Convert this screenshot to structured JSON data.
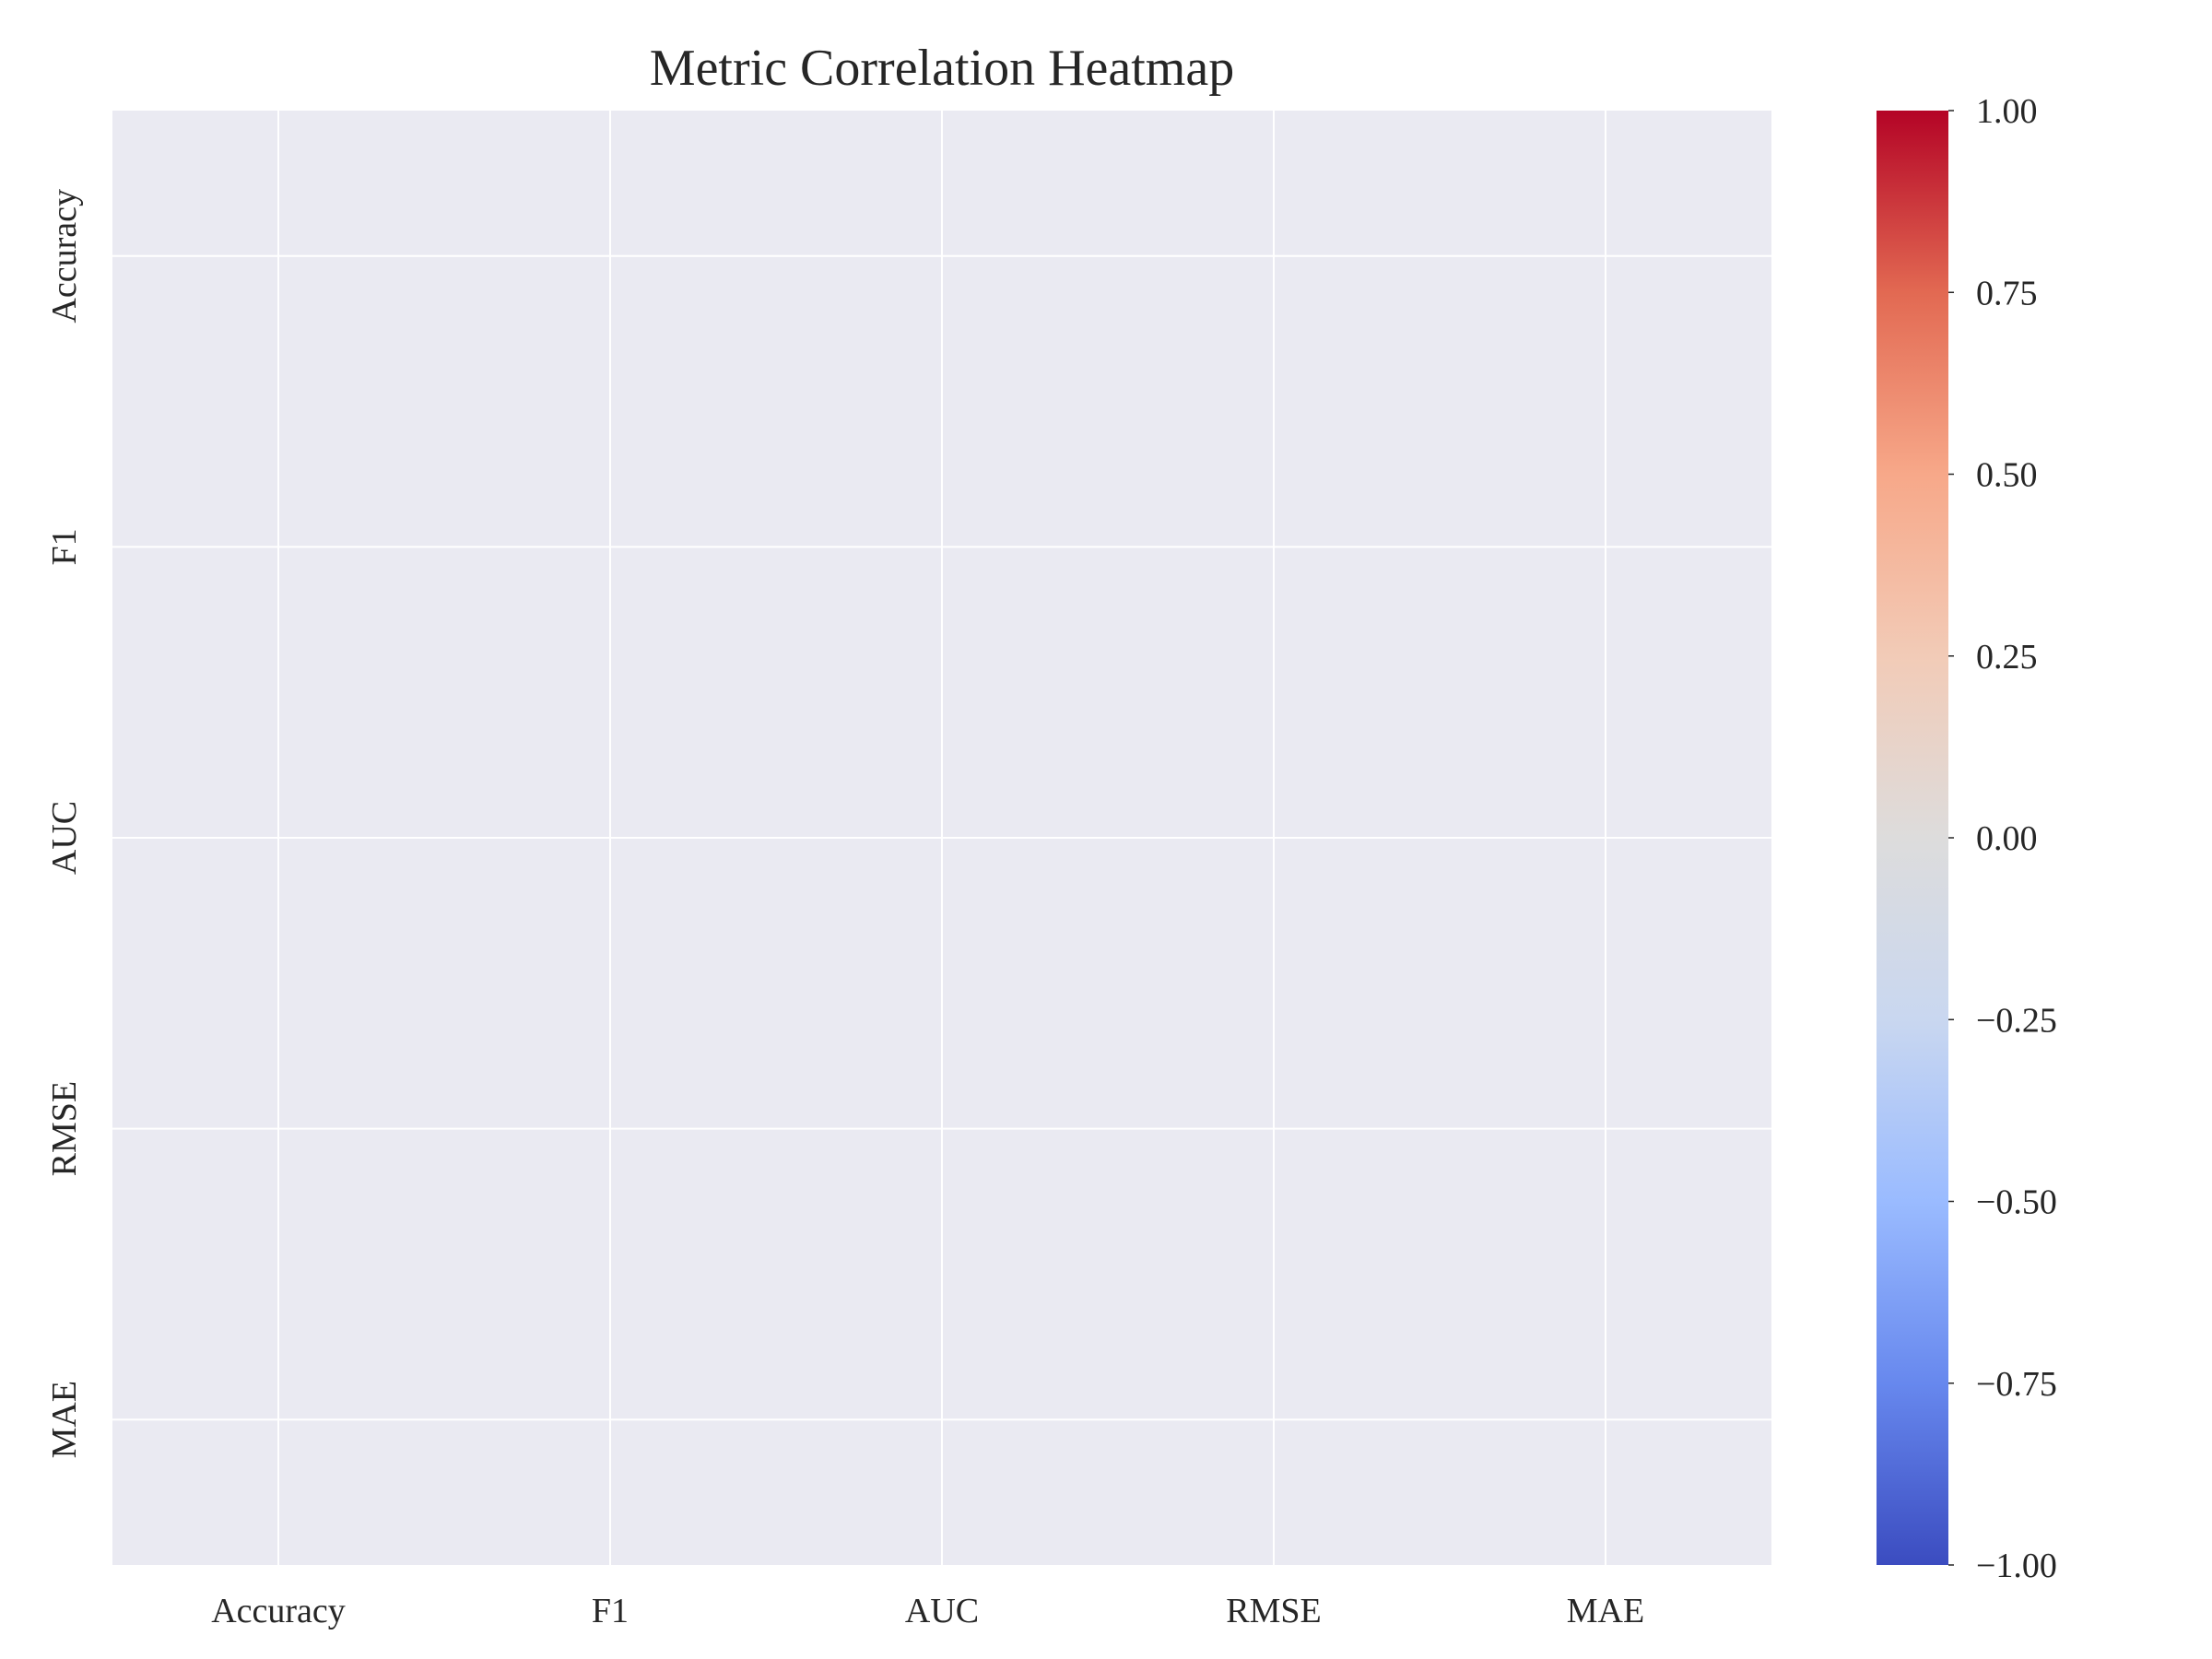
{
  "chart_data": {
    "type": "heatmap",
    "title": "Metric Correlation Heatmap",
    "x_categories": [
      "Accuracy",
      "F1",
      "AUC",
      "RMSE",
      "MAE"
    ],
    "y_categories": [
      "Accuracy",
      "F1",
      "AUC",
      "RMSE",
      "MAE"
    ],
    "values": null,
    "colorbar": {
      "min": -1.0,
      "max": 1.0,
      "ticks": [
        1.0,
        0.75,
        0.5,
        0.25,
        0.0,
        -0.25,
        -0.5,
        -0.75,
        -1.0
      ],
      "tick_labels": [
        "1.00",
        "0.75",
        "0.50",
        "0.25",
        "0.00",
        "−0.25",
        "−0.50",
        "−0.75",
        "−1.00"
      ],
      "colormap": "coolwarm",
      "colors": [
        "#3b4cc0",
        "#6788ee",
        "#9abbff",
        "#c9d7f0",
        "#dddcdc",
        "#f2cbb7",
        "#f7a889",
        "#e26952",
        "#b40426"
      ]
    },
    "grid": true,
    "background_color": "#eaeaf2",
    "grid_color": "#ffffff"
  }
}
